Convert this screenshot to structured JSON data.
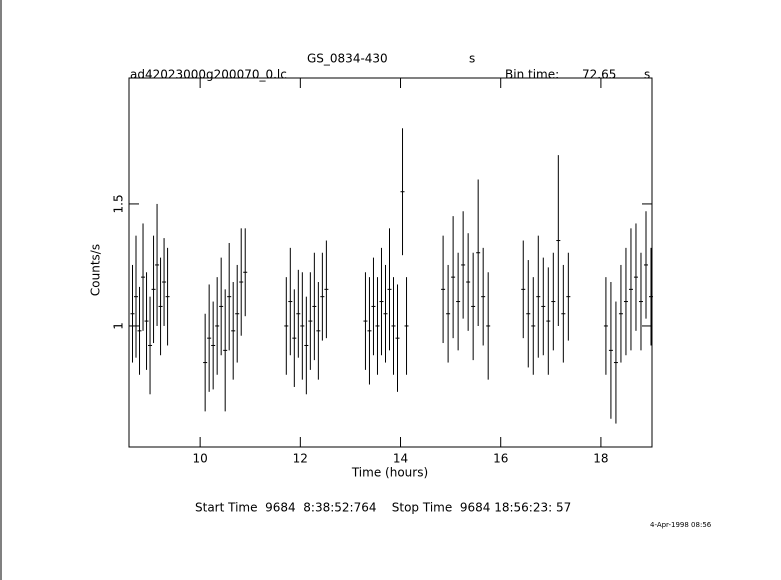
{
  "chart_data": {
    "type": "errorbar",
    "title": "GS_0834-430",
    "title_unit": "s",
    "subtitle": "ad42023000g200070_0.lc",
    "bin_label": "Bin time:",
    "bin_time": "72.65",
    "bin_unit": "s",
    "ylabel": "Counts/s",
    "xlabel": "Time (hours)",
    "footer": "Start Time  9684  8:38:52:764    Stop Time  9684 18:56:23: 57",
    "stamp": "4-Apr-1998 08:56",
    "xlim": [
      8.58,
      19.02
    ],
    "xticks": [
      10,
      12,
      14,
      16,
      18
    ],
    "ylim": [
      0.504,
      2.016
    ],
    "yticks": [
      1,
      1.5
    ],
    "color": "#000000",
    "series": [
      {
        "x": [
          8.65,
          8.72,
          8.79,
          8.86,
          8.93,
          9.0,
          9.07,
          9.14,
          9.21,
          9.28,
          9.35,
          10.1,
          10.18,
          10.26,
          10.34,
          10.42,
          10.5,
          10.58,
          10.66,
          10.74,
          10.82,
          10.9,
          11.72,
          11.8,
          11.88,
          11.96,
          12.04,
          12.12,
          12.2,
          12.28,
          12.36,
          12.44,
          12.52,
          13.3,
          13.38,
          13.46,
          13.54,
          13.62,
          13.7,
          13.78,
          13.86,
          13.94,
          14.04,
          14.12,
          14.85,
          14.95,
          15.05,
          15.15,
          15.25,
          15.35,
          15.45,
          15.55,
          15.65,
          15.75,
          16.45,
          16.55,
          16.65,
          16.75,
          16.85,
          16.95,
          17.05,
          17.15,
          17.25,
          17.35,
          18.1,
          18.2,
          18.3,
          18.4,
          18.5,
          18.6,
          18.7,
          18.8,
          18.9,
          19.0
        ],
        "values": [
          1.05,
          1.12,
          0.98,
          1.2,
          1.02,
          0.92,
          1.15,
          1.25,
          1.08,
          1.18,
          1.12,
          0.85,
          0.95,
          0.92,
          1.0,
          1.08,
          0.9,
          1.12,
          0.98,
          1.05,
          1.18,
          1.22,
          1.0,
          1.1,
          0.95,
          1.05,
          1.0,
          0.92,
          1.02,
          1.08,
          0.98,
          1.12,
          1.15,
          1.02,
          0.98,
          1.08,
          1.0,
          1.1,
          1.05,
          1.15,
          1.0,
          0.95,
          1.55,
          1.0,
          1.15,
          1.05,
          1.2,
          1.1,
          1.25,
          1.18,
          1.08,
          1.3,
          1.12,
          1.0,
          1.15,
          1.05,
          1.0,
          1.12,
          1.08,
          1.02,
          1.1,
          1.35,
          1.05,
          1.12,
          1.0,
          0.9,
          0.85,
          1.05,
          1.1,
          1.15,
          1.2,
          1.1,
          1.25,
          1.12
        ],
        "errors": [
          0.2,
          0.25,
          0.18,
          0.22,
          0.2,
          0.2,
          0.22,
          0.25,
          0.2,
          0.18,
          0.2,
          0.2,
          0.22,
          0.18,
          0.2,
          0.2,
          0.25,
          0.22,
          0.2,
          0.2,
          0.22,
          0.18,
          0.2,
          0.22,
          0.2,
          0.18,
          0.22,
          0.2,
          0.2,
          0.22,
          0.2,
          0.18,
          0.2,
          0.2,
          0.22,
          0.2,
          0.2,
          0.22,
          0.2,
          0.25,
          0.2,
          0.22,
          0.26,
          0.2,
          0.22,
          0.2,
          0.25,
          0.2,
          0.22,
          0.2,
          0.22,
          0.3,
          0.2,
          0.22,
          0.2,
          0.22,
          0.2,
          0.25,
          0.2,
          0.22,
          0.2,
          0.35,
          0.2,
          0.18,
          0.2,
          0.28,
          0.25,
          0.2,
          0.22,
          0.25,
          0.22,
          0.2,
          0.22,
          0.2
        ]
      }
    ]
  }
}
